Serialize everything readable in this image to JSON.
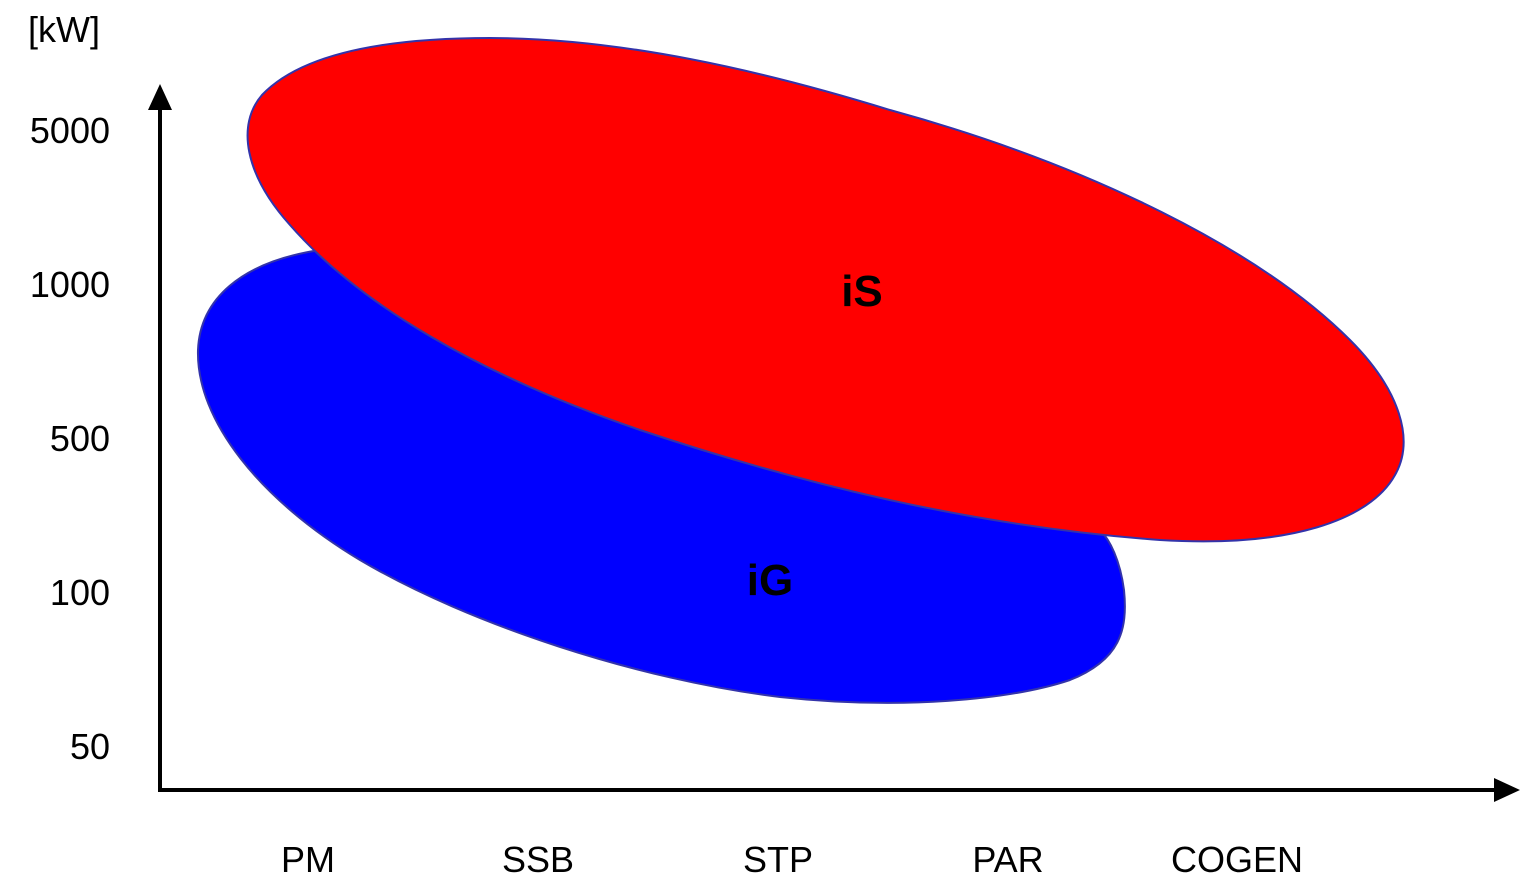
{
  "chart_data": {
    "type": "area",
    "y_unit": "[kW]",
    "y_ticks": [
      "5000",
      "1000",
      "500",
      "100",
      "50"
    ],
    "categories": [
      "PM",
      "SSB",
      "STP",
      "PAR",
      "COGEN"
    ],
    "regions": [
      {
        "label": "iG",
        "color": "#0000ff"
      },
      {
        "label": "iS",
        "color": "#ff0000"
      }
    ],
    "axis_color": "#000000",
    "region_outline_color": "#3333aa"
  }
}
